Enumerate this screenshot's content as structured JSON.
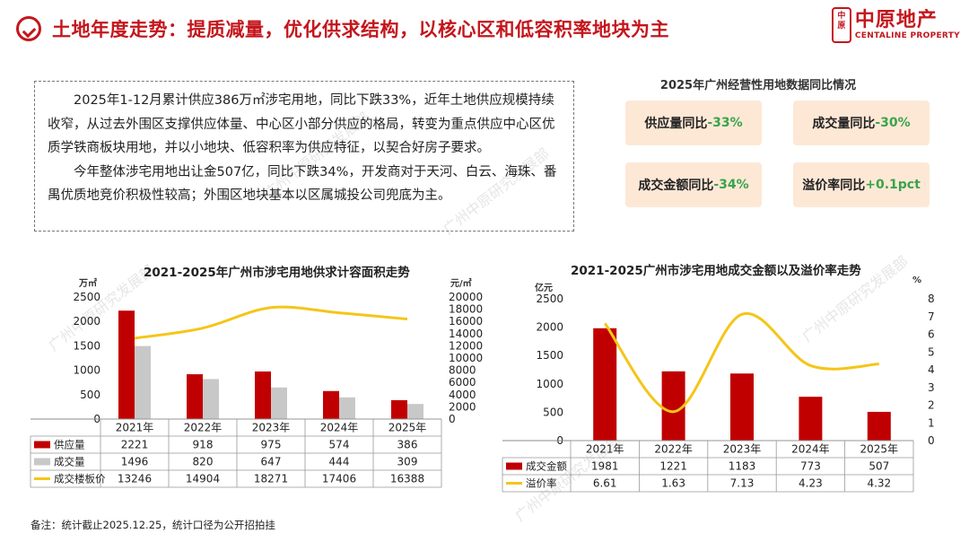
{
  "header": {
    "title": "土地年度走势：提质减量，优化供求结构，以核心区和低容积率地块为主",
    "logo_seal": "中原",
    "logo_cn": "中原地产",
    "logo_en": "CENTALINE PROPERTY"
  },
  "summary": {
    "para1": "2025年1-12月累计供应386万㎡涉宅用地，同比下跌33%，近年土地供应规模持续收窄，从过去外围区支撑供应体量、中心区小部分供应的格局，转变为重点供应中心区优质学铁商板块用地，并以小地块、低容积率为供应特征，以契合好房子要求。",
    "para2": "今年整体涉宅用地出让金507亿，同比下跌34%，开发商对于天河、白云、海珠、番禺优质地竞价积极性较高；外围区地块基本以区属城投公司兜底为主。"
  },
  "kpis": {
    "title": "2025年广州经营性用地数据同比情况",
    "items": [
      {
        "label": "供应量同比",
        "value": "-33%"
      },
      {
        "label": "成交量同比",
        "value": "-30%"
      },
      {
        "label": "成交金额同比",
        "value": "-34%"
      },
      {
        "label": "溢价率同比",
        "value": "+0.1pct"
      }
    ]
  },
  "colors": {
    "red": "#c00000",
    "gray": "#c8c8c8",
    "yellow": "#f5c518",
    "accent": "#c4161c",
    "green": "#3aa34b"
  },
  "chart_data": [
    {
      "type": "bar",
      "title": "2021-2025年广州市涉宅用地供求计容面积走势",
      "left_unit": "万㎡",
      "right_unit": "元/㎡",
      "categories": [
        "2021年",
        "2022年",
        "2023年",
        "2024年",
        "2025年"
      ],
      "series": [
        {
          "name": "供应量",
          "kind": "bar",
          "axis": "left",
          "values": [
            2221,
            918,
            975,
            574,
            386
          ]
        },
        {
          "name": "成交量",
          "kind": "bar",
          "axis": "left",
          "values": [
            1496,
            820,
            647,
            444,
            309
          ]
        },
        {
          "name": "成交楼板价",
          "kind": "line",
          "axis": "right",
          "values": [
            13246,
            14904,
            18271,
            17406,
            16388
          ]
        }
      ],
      "ylim_left": [
        0,
        2500
      ],
      "yticks_left": [
        "0",
        "500",
        "1000",
        "1500",
        "2000",
        "2500"
      ],
      "ylim_right": [
        0,
        20000
      ],
      "yticks_right": [
        "0",
        "2000",
        "4000",
        "6000",
        "8000",
        "10000",
        "12000",
        "14000",
        "16000",
        "18000",
        "20000"
      ],
      "table": {
        "rows": [
          {
            "label": "供应量",
            "cells": [
              "2221",
              "918",
              "975",
              "574",
              "386"
            ]
          },
          {
            "label": "成交量",
            "cells": [
              "1496",
              "820",
              "647",
              "444",
              "309"
            ]
          },
          {
            "label": "成交楼板价",
            "cells": [
              "13246",
              "14904",
              "18271",
              "17406",
              "16388"
            ]
          }
        ]
      }
    },
    {
      "type": "bar",
      "title": "2021-2025广州市涉宅用地成交金额以及溢价率走势",
      "left_unit": "亿元",
      "right_unit": "%",
      "categories": [
        "2021年",
        "2022年",
        "2023年",
        "2024年",
        "2025年"
      ],
      "series": [
        {
          "name": "成交金额",
          "kind": "bar",
          "axis": "left",
          "values": [
            1981,
            1221,
            1183,
            773,
            507
          ]
        },
        {
          "name": "溢价率",
          "kind": "line",
          "axis": "right",
          "values": [
            6.61,
            1.63,
            7.13,
            4.23,
            4.32
          ]
        }
      ],
      "ylim_left": [
        0,
        2500
      ],
      "yticks_left": [
        "0",
        "500",
        "1000",
        "1500",
        "2000",
        "2500"
      ],
      "ylim_right": [
        0,
        8
      ],
      "yticks_right": [
        "0",
        "1",
        "2",
        "3",
        "4",
        "5",
        "6",
        "7",
        "8"
      ],
      "table": {
        "rows": [
          {
            "label": "成交金额",
            "cells": [
              "1981",
              "1221",
              "1183",
              "773",
              "507"
            ]
          },
          {
            "label": "溢价率",
            "cells": [
              "6.61",
              "1.63",
              "7.13",
              "4.23",
              "4.32"
            ]
          }
        ]
      }
    }
  ],
  "footnote": "备注：统计截止2025.12.25，统计口径为公开招拍挂",
  "watermark": "广州中原研究发展部"
}
